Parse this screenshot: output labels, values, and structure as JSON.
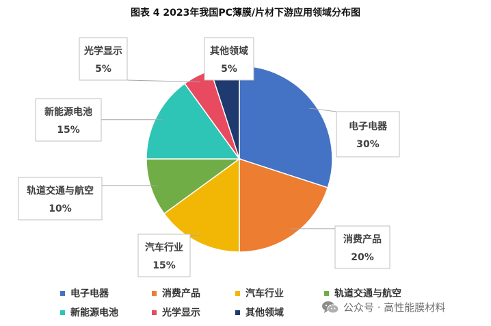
{
  "title": "图表 4 2023年我国PC薄膜/片材下游应用领域分布图",
  "chart_data": {
    "type": "pie",
    "categories": [
      "电子电器",
      "消费产品",
      "汽车行业",
      "轨道交通与航空",
      "新能源电池",
      "光学显示",
      "其他领域"
    ],
    "values": [
      30,
      20,
      15,
      10,
      15,
      5,
      5
    ],
    "value_labels": [
      "30%",
      "20%",
      "15%",
      "10%",
      "15%",
      "5%",
      "5%"
    ],
    "colors": [
      "#4472C4",
      "#ED7D31",
      "#F2B705",
      "#70AD47",
      "#2EC4B6",
      "#E84A5F",
      "#1F3A6E"
    ],
    "legend_position": "bottom"
  },
  "watermark": {
    "text": "公众号 · 高性能膜材料",
    "icon": "wechat-icon"
  }
}
